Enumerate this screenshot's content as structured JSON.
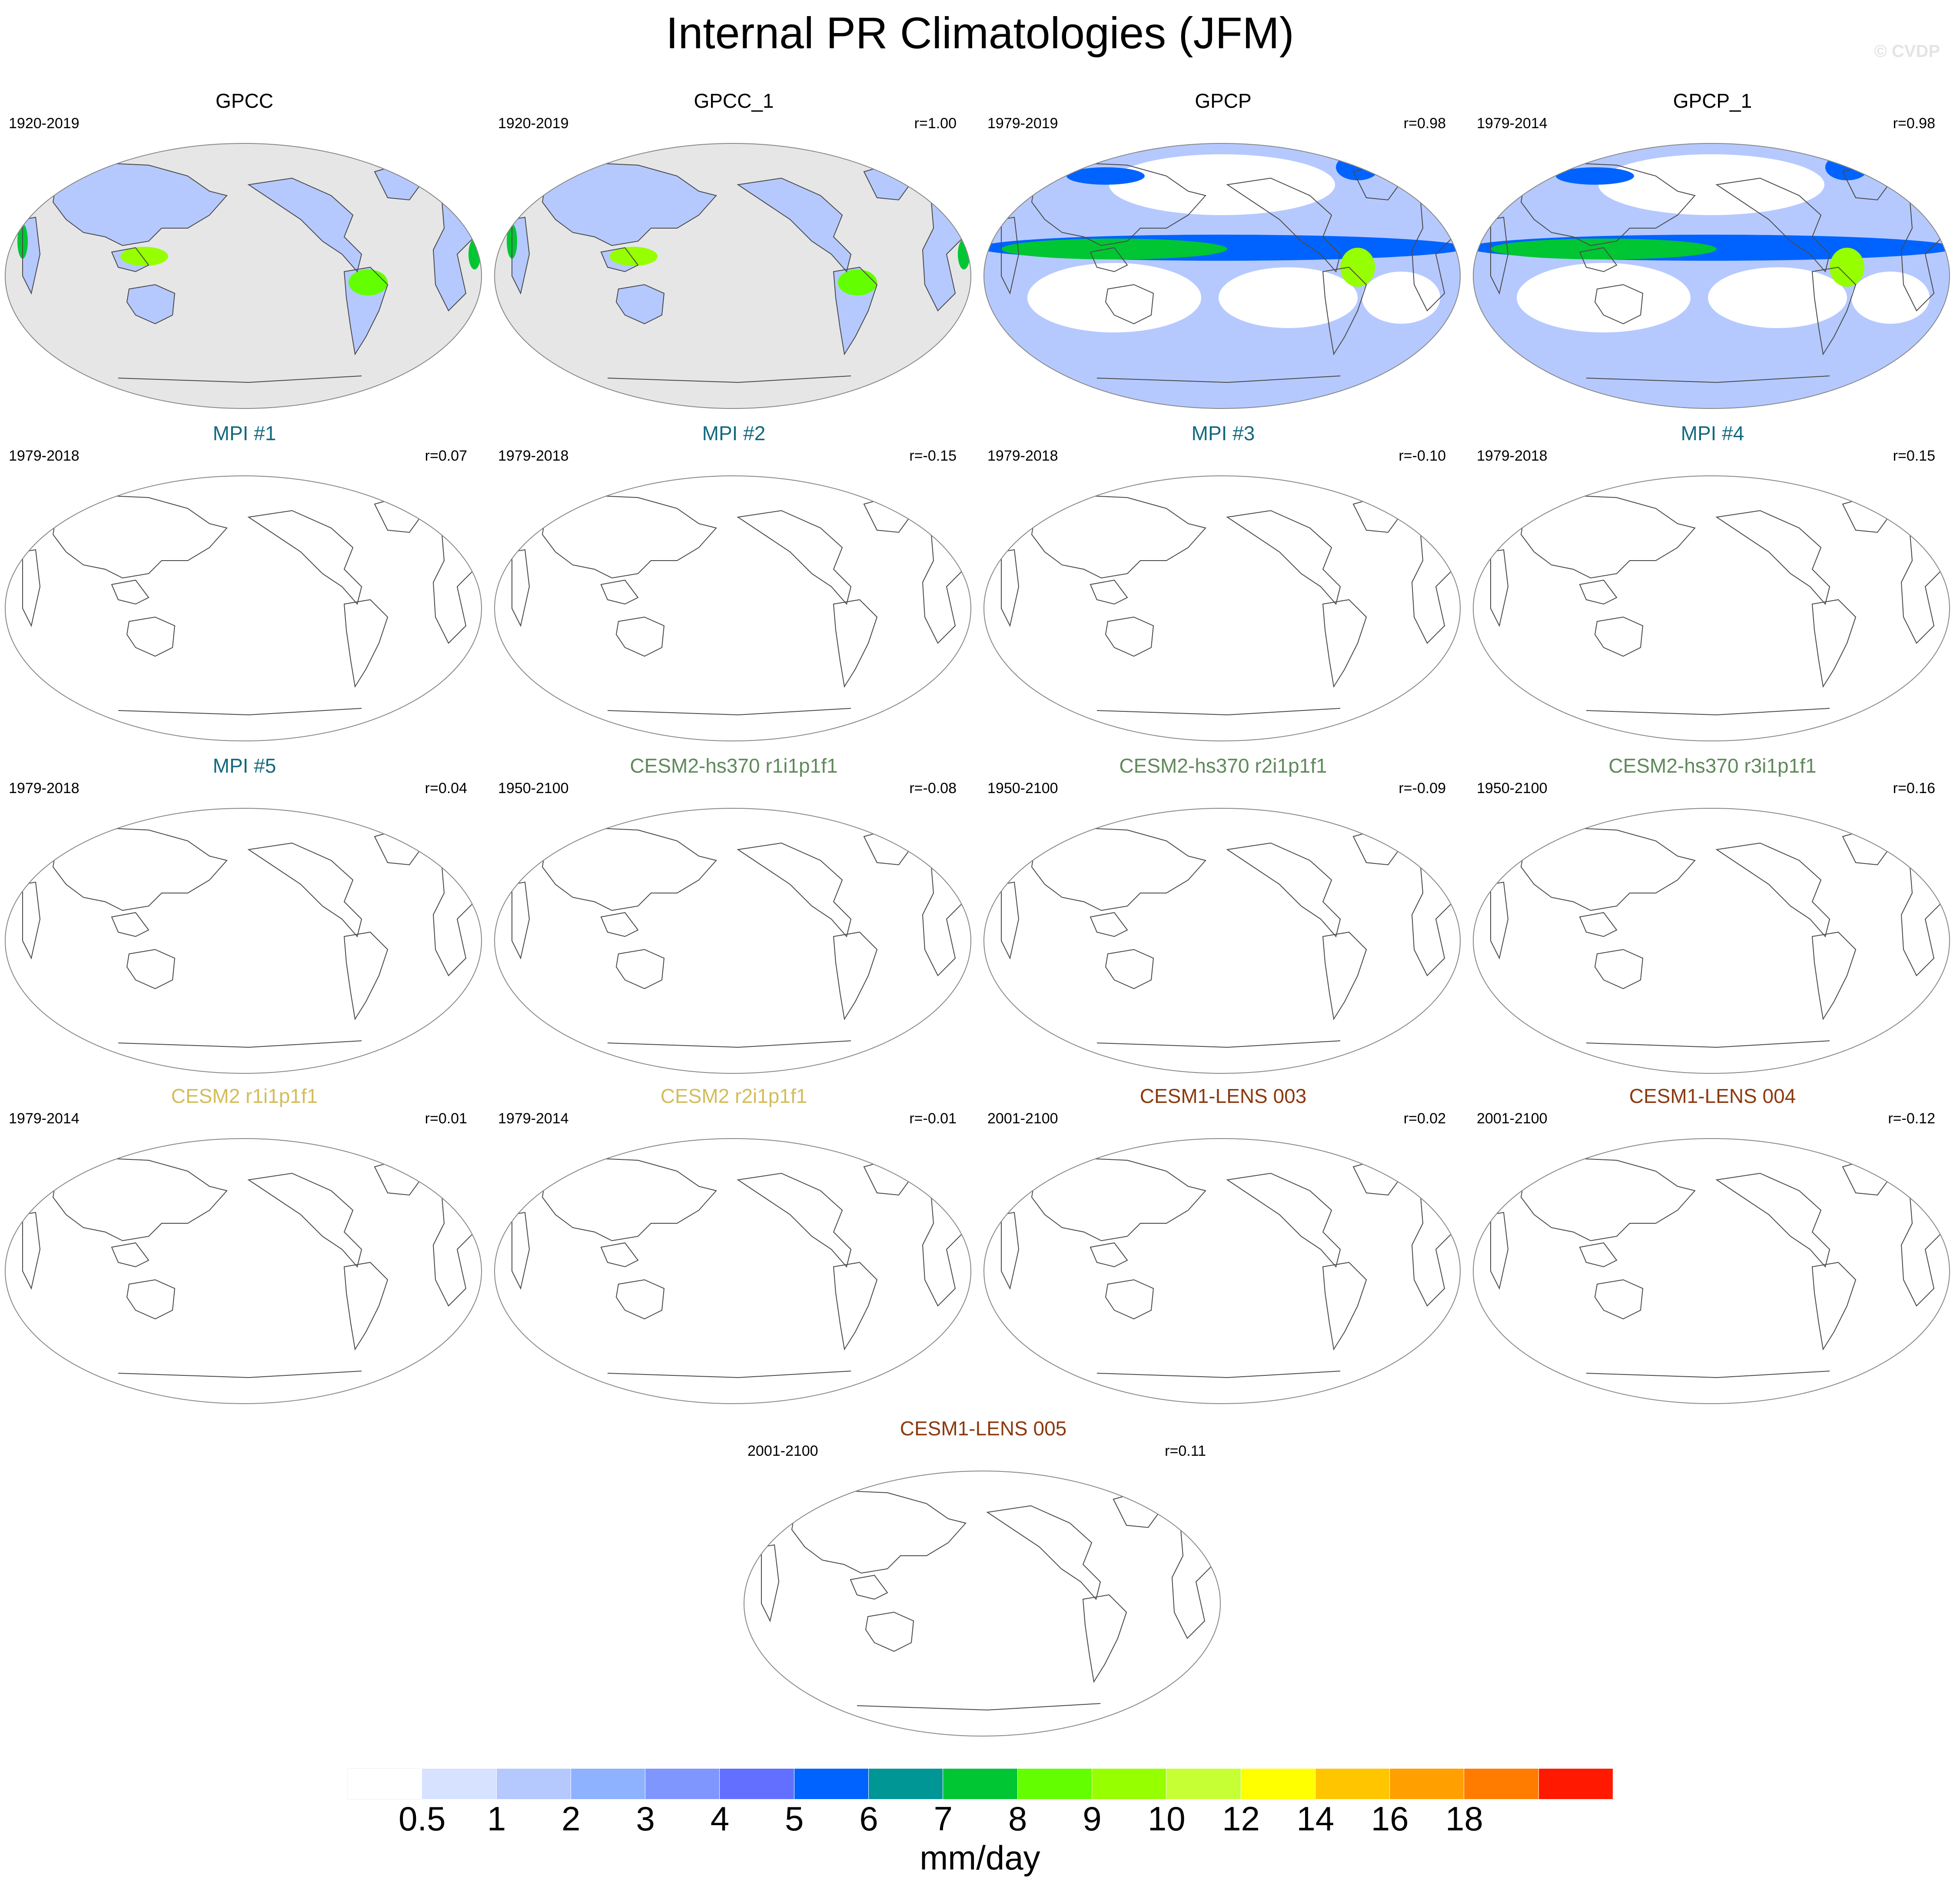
{
  "title": "Internal PR Climatologies (JFM)",
  "watermark": "© CVDP",
  "colors": {
    "title_gpcc": "#000000",
    "title_mpi": "#13697f",
    "title_cesm2hs": "#5e8a5a",
    "title_cesm2": "#d3bd5c",
    "title_cesm1": "#8b3a10",
    "coast": "#4a4a4a",
    "ocean_fill": "#e6e6e6"
  },
  "panels": [
    {
      "title": "GPCC",
      "period": "1920-2019",
      "r": "",
      "color_key": "title_gpcc",
      "style": "gpcc"
    },
    {
      "title": "GPCC_1",
      "period": "1920-2019",
      "r": "r=1.00",
      "color_key": "title_gpcc",
      "style": "gpcc"
    },
    {
      "title": "GPCP",
      "period": "1979-2019",
      "r": "r=0.98",
      "color_key": "title_gpcc",
      "style": "gpcp"
    },
    {
      "title": "GPCP_1",
      "period": "1979-2014",
      "r": "r=0.98",
      "color_key": "title_gpcc",
      "style": "gpcp"
    },
    {
      "title": "MPI #1",
      "period": "1979-2018",
      "r": "r=0.07",
      "color_key": "title_mpi",
      "style": "blank"
    },
    {
      "title": "MPI #2",
      "period": "1979-2018",
      "r": "r=-0.15",
      "color_key": "title_mpi",
      "style": "blank"
    },
    {
      "title": "MPI #3",
      "period": "1979-2018",
      "r": "r=-0.10",
      "color_key": "title_mpi",
      "style": "blank"
    },
    {
      "title": "MPI #4",
      "period": "1979-2018",
      "r": "r=0.15",
      "color_key": "title_mpi",
      "style": "blank"
    },
    {
      "title": "MPI #5",
      "period": "1979-2018",
      "r": "r=0.04",
      "color_key": "title_mpi",
      "style": "blank"
    },
    {
      "title": "CESM2-hs370 r1i1p1f1",
      "period": "1950-2100",
      "r": "r=-0.08",
      "color_key": "title_cesm2hs",
      "style": "blank"
    },
    {
      "title": "CESM2-hs370 r2i1p1f1",
      "period": "1950-2100",
      "r": "r=-0.09",
      "color_key": "title_cesm2hs",
      "style": "blank"
    },
    {
      "title": "CESM2-hs370 r3i1p1f1",
      "period": "1950-2100",
      "r": "r=0.16",
      "color_key": "title_cesm2hs",
      "style": "blank"
    },
    {
      "title": "CESM2 r1i1p1f1",
      "period": "1979-2014",
      "r": "r=0.01",
      "color_key": "title_cesm2",
      "style": "blank"
    },
    {
      "title": "CESM2 r2i1p1f1",
      "period": "1979-2014",
      "r": "r=-0.01",
      "color_key": "title_cesm2",
      "style": "blank"
    },
    {
      "title": "CESM1-LENS 003",
      "period": "2001-2100",
      "r": "r=0.02",
      "color_key": "title_cesm1",
      "style": "blank"
    },
    {
      "title": "CESM1-LENS 004",
      "period": "2001-2100",
      "r": "r=-0.12",
      "color_key": "title_cesm1",
      "style": "blank"
    },
    {
      "title": "CESM1-LENS 005",
      "period": "2001-2100",
      "r": "r=0.11",
      "color_key": "title_cesm1",
      "style": "blank"
    }
  ],
  "colorbar": {
    "colors": [
      "#ffffff",
      "#d6e2ff",
      "#b5c9ff",
      "#8eb2ff",
      "#7f96ff",
      "#6370ff",
      "#0063ff",
      "#009696",
      "#00c633",
      "#63ff00",
      "#96ff00",
      "#c6ff33",
      "#ffff00",
      "#ffc600",
      "#ffa000",
      "#ff7c00",
      "#ff1900"
    ],
    "labels": [
      "0.5",
      "1",
      "2",
      "3",
      "4",
      "5",
      "6",
      "7",
      "8",
      "9",
      "10",
      "12",
      "14",
      "16",
      "18"
    ],
    "units": "mm/day"
  }
}
